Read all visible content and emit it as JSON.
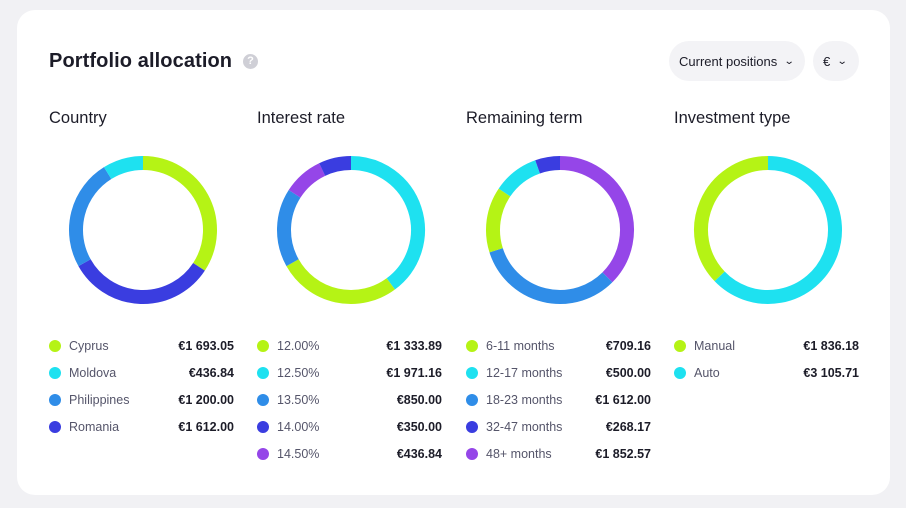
{
  "header": {
    "title": "Portfolio allocation",
    "help_icon": "?",
    "positions_label": "Current positions",
    "currency_label": "€"
  },
  "colors": {
    "lime": "#b5f315",
    "cyan": "#1ee1f0",
    "blue": "#2f8de8",
    "indigo": "#3a3de0",
    "purple": "#9546e8"
  },
  "chart_data": [
    {
      "type": "pie",
      "title": "Country",
      "start_deg": 0,
      "labels": [
        "Cyprus",
        "Moldova",
        "Philippines",
        "Romania"
      ],
      "display_values": [
        "€1 693.05",
        "€436.84",
        "€1 200.00",
        "€1 612.00"
      ],
      "values": [
        1693.05,
        436.84,
        1200.0,
        1612.0
      ],
      "colors": [
        "#b5f315",
        "#1ee1f0",
        "#2f8de8",
        "#3a3de0"
      ],
      "ring_order": [
        0,
        3,
        2,
        1
      ]
    },
    {
      "type": "pie",
      "title": "Interest rate",
      "start_deg": 0,
      "labels": [
        "12.00%",
        "12.50%",
        "13.50%",
        "14.00%",
        "14.50%"
      ],
      "display_values": [
        "€1 333.89",
        "€1 971.16",
        "€850.00",
        "€350.00",
        "€436.84"
      ],
      "values": [
        1333.89,
        1971.16,
        850.0,
        350.0,
        436.84
      ],
      "colors": [
        "#b5f315",
        "#1ee1f0",
        "#2f8de8",
        "#3a3de0",
        "#9546e8"
      ],
      "ring_order": [
        1,
        0,
        2,
        4,
        3
      ]
    },
    {
      "type": "pie",
      "title": "Remaining term",
      "start_deg": 0,
      "labels": [
        "6-11 months",
        "12-17 months",
        "18-23 months",
        "32-47 months",
        "48+ months"
      ],
      "display_values": [
        "€709.16",
        "€500.00",
        "€1 612.00",
        "€268.17",
        "€1 852.57"
      ],
      "values": [
        709.16,
        500.0,
        1612.0,
        268.17,
        1852.57
      ],
      "colors": [
        "#b5f315",
        "#1ee1f0",
        "#2f8de8",
        "#3a3de0",
        "#9546e8"
      ],
      "ring_order": [
        4,
        2,
        0,
        1,
        3
      ]
    },
    {
      "type": "pie",
      "title": "Investment type",
      "start_deg": 0,
      "labels": [
        "Manual",
        "Auto"
      ],
      "display_values": [
        "€1 836.18",
        "€3 105.71"
      ],
      "values": [
        1836.18,
        3105.71
      ],
      "colors": [
        "#b5f315",
        "#1ee1f0"
      ],
      "ring_order": [
        1,
        0
      ]
    }
  ]
}
